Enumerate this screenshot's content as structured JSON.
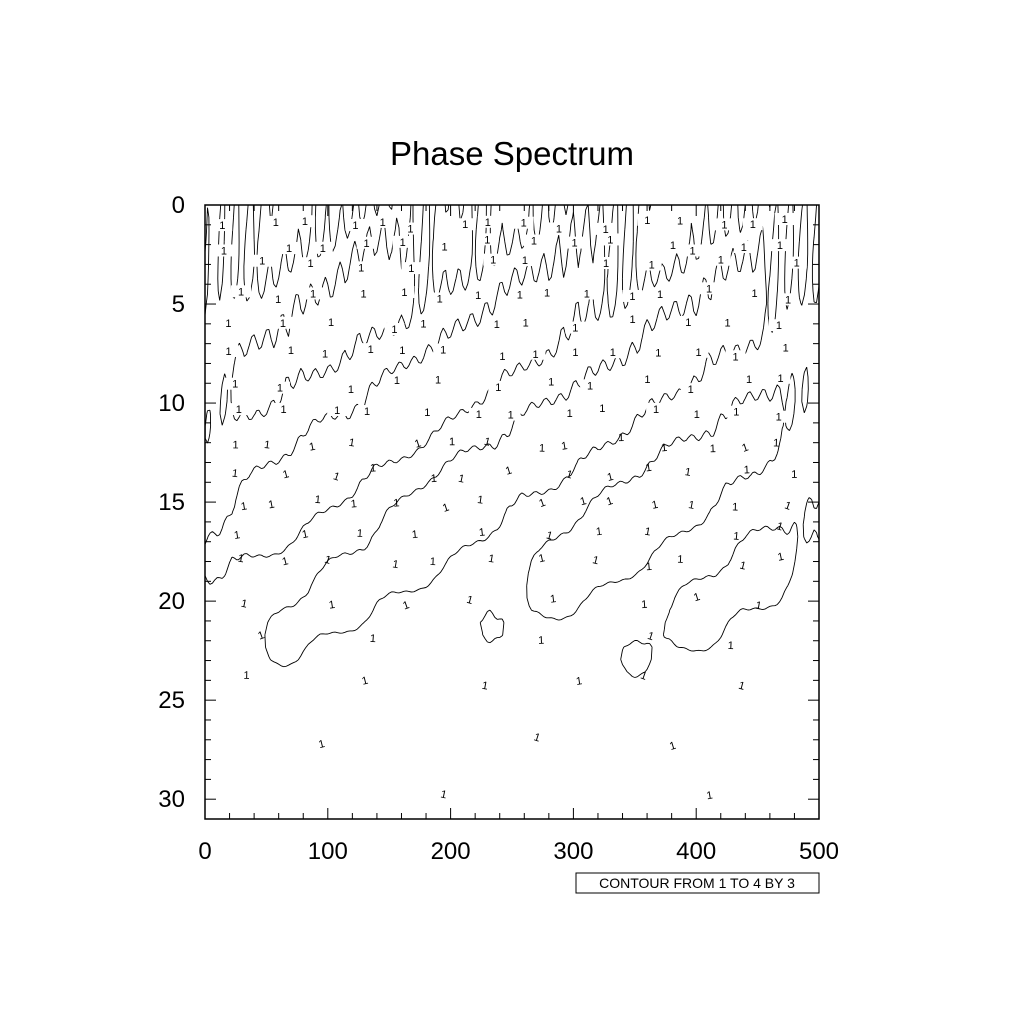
{
  "chart_data": {
    "type": "contour",
    "title": "Phase Spectrum",
    "x_range": [
      0,
      500
    ],
    "y_range": [
      0,
      31
    ],
    "y_reversed": true,
    "x_ticks": [
      0,
      100,
      200,
      300,
      400,
      500
    ],
    "y_ticks": [
      0,
      5,
      10,
      15,
      20,
      25,
      30
    ],
    "contour_levels": [
      1,
      4
    ],
    "contour_line_label": "1",
    "info_label": "CONTOUR FROM 1 TO 4 BY 3",
    "colors": {
      "line": "#000000",
      "background": "#ffffff"
    }
  }
}
